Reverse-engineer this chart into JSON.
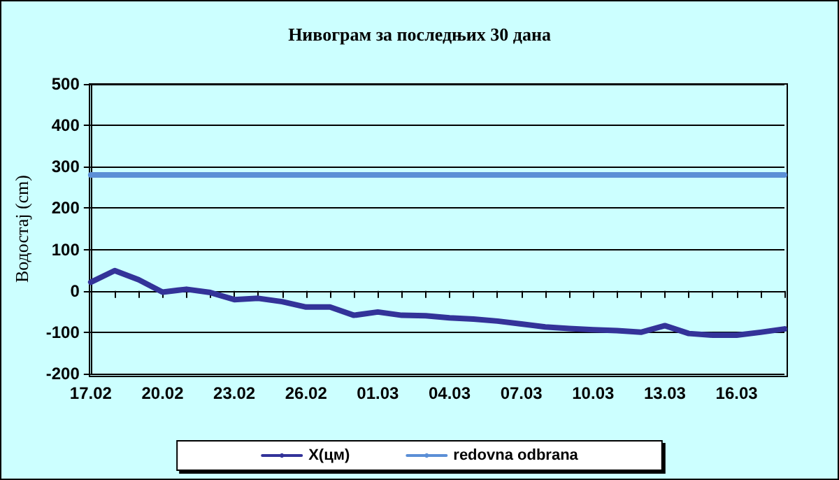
{
  "chart_data": {
    "type": "line",
    "title": "Нивограм за последњих 30 дана",
    "ylabel": "Водостај (cm)",
    "categories": [
      "17.02",
      null,
      null,
      "20.02",
      null,
      null,
      "23.02",
      null,
      null,
      "26.02",
      null,
      null,
      "01.03",
      null,
      null,
      "04.03",
      null,
      null,
      "07.03",
      null,
      null,
      "10.03",
      null,
      null,
      "13.03",
      null,
      null,
      "16.03",
      null,
      null
    ],
    "series": [
      {
        "name": "X(цм)",
        "color": "#333399",
        "values": [
          21,
          49,
          27,
          -3,
          4,
          -4,
          -21,
          -18,
          -26,
          -39,
          -39,
          -59,
          -51,
          -59,
          -60,
          -65,
          -68,
          -73,
          -80,
          -87,
          -91,
          -94,
          -96,
          -100,
          -84,
          -103,
          -107,
          -107,
          -100,
          -92
        ]
      },
      {
        "name": "redovna odbrana",
        "color": "#5b8fd6",
        "values": [
          280,
          280,
          280,
          280,
          280,
          280,
          280,
          280,
          280,
          280,
          280,
          280,
          280,
          280,
          280,
          280,
          280,
          280,
          280,
          280,
          280,
          280,
          280,
          280,
          280,
          280,
          280,
          280,
          280,
          280
        ]
      }
    ],
    "ylim": [
      -200,
      500
    ],
    "yticks": [
      -200,
      -100,
      0,
      100,
      200,
      300,
      400,
      500
    ],
    "grid": "y",
    "legend": "bottom",
    "marker": "none",
    "line_style": "solid"
  }
}
